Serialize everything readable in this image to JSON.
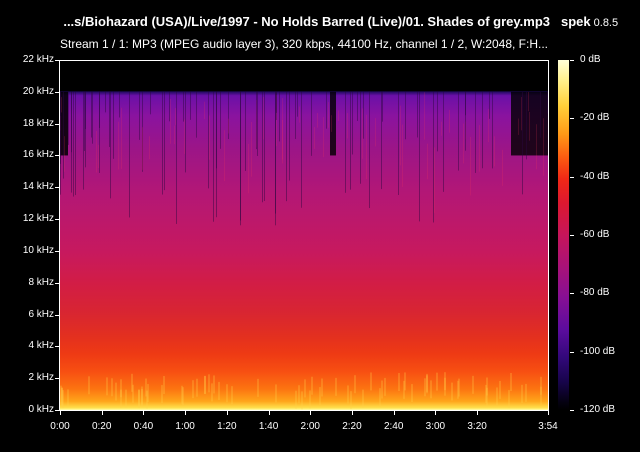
{
  "header": {
    "file_title": "...s/Biohazard (USA)/Live/1997 - No Holds Barred (Live)/01. Shades of grey.mp3",
    "app_name": "spek",
    "app_version": "0.8.5",
    "stream_info": "Stream 1 / 1: MP3 (MPEG audio layer 3), 320 kbps, 44100 Hz, channel 1 / 2, W:2048, F:H..."
  },
  "frequency_axis": {
    "ticks": [
      "22 kHz",
      "20 kHz",
      "18 kHz",
      "16 kHz",
      "14 kHz",
      "12 kHz",
      "10 kHz",
      "8 kHz",
      "6 kHz",
      "4 kHz",
      "2 kHz",
      "0 kHz"
    ]
  },
  "time_axis": {
    "ticks": [
      "0:00",
      "0:20",
      "0:40",
      "1:00",
      "1:20",
      "1:40",
      "2:00",
      "2:20",
      "2:40",
      "3:00",
      "3:20",
      "3:54"
    ]
  },
  "colorbar": {
    "labels": [
      "0 dB",
      "-20 dB",
      "-40 dB",
      "-60 dB",
      "-80 dB",
      "-100 dB",
      "-120 dB"
    ]
  },
  "colors": {
    "background": "#000000",
    "text": "#ffffff",
    "spectrum_low": "#ffffb0",
    "spectrum_mid": "#d21d45",
    "spectrum_high": "#6b10a8"
  }
}
